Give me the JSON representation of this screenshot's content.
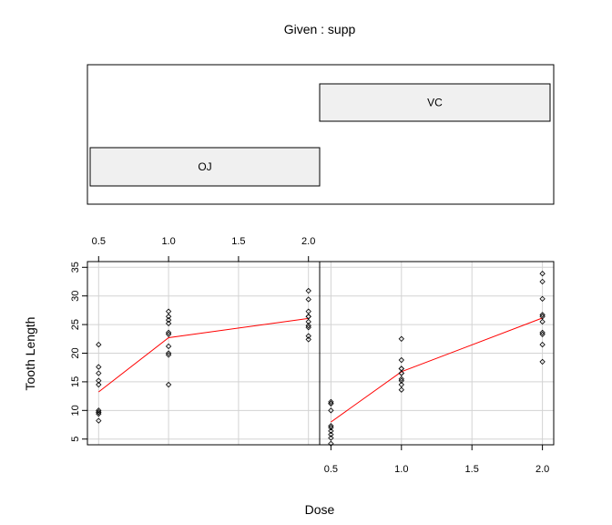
{
  "chart_data": {
    "type": "scatter",
    "title": "Given : supp",
    "xlabel": "Dose",
    "ylabel": "Tooth Length",
    "xlim": [
      0.42,
      2.08
    ],
    "ylim": [
      4,
      36
    ],
    "x_ticks": [
      "0.5",
      "1.0",
      "1.5",
      "2.0"
    ],
    "y_ticks": [
      "5",
      "10",
      "15",
      "20",
      "25",
      "30",
      "35"
    ],
    "grid": true,
    "given": {
      "variable": "supp",
      "levels": [
        "OJ",
        "VC"
      ]
    },
    "panels": [
      {
        "level": "OJ",
        "points": {
          "x": [
            0.5,
            0.5,
            0.5,
            0.5,
            0.5,
            0.5,
            0.5,
            0.5,
            0.5,
            0.5,
            1,
            1,
            1,
            1,
            1,
            1,
            1,
            1,
            1,
            1,
            2,
            2,
            2,
            2,
            2,
            2,
            2,
            2,
            2,
            2
          ],
          "y": [
            15.2,
            21.5,
            17.6,
            9.7,
            14.5,
            10.0,
            8.2,
            9.4,
            16.5,
            9.7,
            19.7,
            23.3,
            23.6,
            26.4,
            20.0,
            25.2,
            25.8,
            21.2,
            14.5,
            27.3,
            25.5,
            26.4,
            22.4,
            24.5,
            24.8,
            30.9,
            26.4,
            27.3,
            29.4,
            23.0
          ]
        },
        "fit": {
          "x": [
            0.5,
            1.0,
            2.0
          ],
          "y": [
            13.23,
            22.7,
            26.06
          ]
        }
      },
      {
        "level": "VC",
        "points": {
          "x": [
            0.5,
            0.5,
            0.5,
            0.5,
            0.5,
            0.5,
            0.5,
            0.5,
            0.5,
            0.5,
            1,
            1,
            1,
            1,
            1,
            1,
            1,
            1,
            1,
            1,
            2,
            2,
            2,
            2,
            2,
            2,
            2,
            2,
            2,
            2
          ],
          "y": [
            4.2,
            11.5,
            7.3,
            5.8,
            6.4,
            10.0,
            11.2,
            11.2,
            5.2,
            7.0,
            16.5,
            16.5,
            15.2,
            17.3,
            22.5,
            17.3,
            13.6,
            14.5,
            18.8,
            15.5,
            23.6,
            18.5,
            33.9,
            25.5,
            26.4,
            32.5,
            26.7,
            21.5,
            23.3,
            29.5
          ]
        },
        "fit": {
          "x": [
            0.5,
            1.0,
            2.0
          ],
          "y": [
            7.98,
            16.77,
            26.14
          ]
        }
      }
    ]
  }
}
